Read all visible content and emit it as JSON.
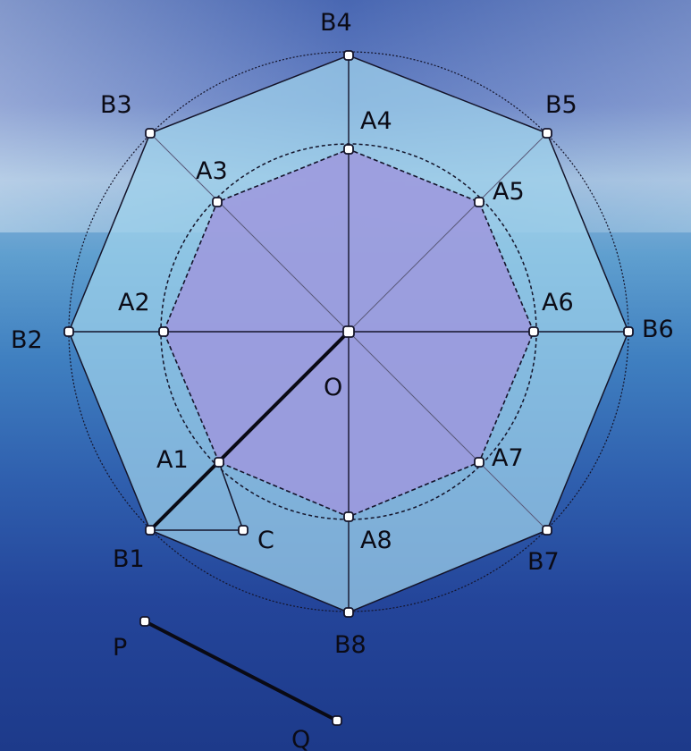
{
  "diagram": {
    "labels": {
      "O": "O",
      "C": "C",
      "P": "P",
      "Q": "Q",
      "A": [
        "A1",
        "A2",
        "A3",
        "A4",
        "A5",
        "A6",
        "A7",
        "A8"
      ],
      "B": [
        "B1",
        "B2",
        "B3",
        "B4",
        "B5",
        "B6",
        "B7",
        "B8"
      ]
    },
    "colors": {
      "outer_fill": "#9fd2ec",
      "inner_fill": "#9d98dd",
      "line": "#14142a",
      "thin_line": "#5a5a7a"
    }
  }
}
